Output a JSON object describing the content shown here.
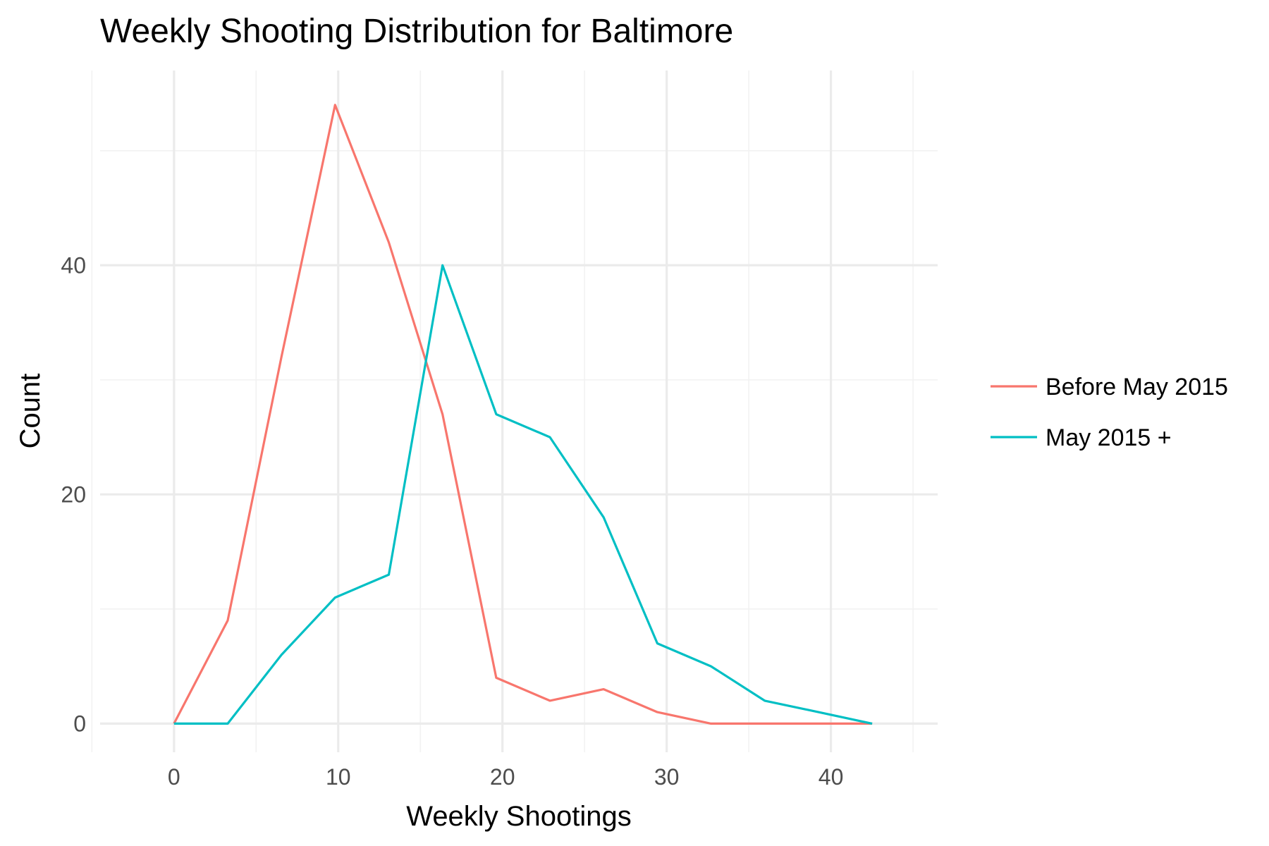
{
  "chart_data": {
    "type": "line",
    "title": "Weekly Shooting Distribution for Baltimore",
    "xlabel": "Weekly Shootings",
    "ylabel": "Count",
    "xlim": [
      -4.5,
      46.5
    ],
    "ylim": [
      -2.5,
      57
    ],
    "x_ticks": [
      0,
      10,
      20,
      30,
      40
    ],
    "x_tick_labels": [
      "0",
      "10",
      "20",
      "30",
      "40"
    ],
    "x_minor_ticks": [
      -5,
      5,
      15,
      25,
      35,
      45
    ],
    "y_ticks": [
      0,
      20,
      40
    ],
    "y_tick_labels": [
      "0",
      "20",
      "40"
    ],
    "y_minor_ticks": [
      10,
      30,
      50
    ],
    "grid": true,
    "legend_position": "right",
    "series": [
      {
        "name": "Before May 2015",
        "color": "#F8766D",
        "x": [
          0,
          3.27,
          6.54,
          9.81,
          13.08,
          16.35,
          19.62,
          22.89,
          26.16,
          29.43,
          32.7,
          35.97,
          39.24,
          42.51
        ],
        "y": [
          0,
          9,
          32,
          54,
          42,
          27,
          4,
          2,
          3,
          1,
          0,
          0,
          0,
          0
        ]
      },
      {
        "name": "May 2015 +",
        "color": "#00BFC4",
        "x": [
          0,
          3.27,
          6.54,
          9.81,
          13.08,
          16.35,
          19.62,
          22.89,
          26.16,
          29.43,
          32.7,
          35.97,
          39.24,
          42.51
        ],
        "y": [
          0,
          0,
          6,
          11,
          13,
          40,
          27,
          25,
          18,
          7,
          5,
          2,
          1,
          0
        ]
      }
    ]
  }
}
